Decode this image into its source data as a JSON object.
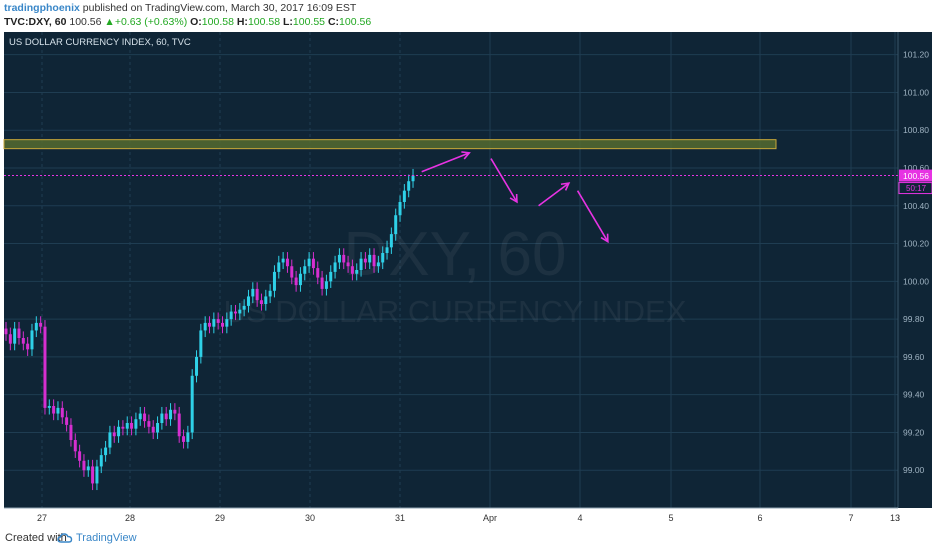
{
  "header": {
    "author": "tradingphoenix",
    "published": "published on TradingView.com, March 30, 2017 16:09 EST",
    "symbol": "TVC:DXY, 60",
    "last": "100.56",
    "change": "+0.63 (+0.63%)",
    "open_label": "O:",
    "open": "100.58",
    "high_label": "H:",
    "high": "100.58",
    "low_label": "L:",
    "low": "100.55",
    "close_label": "C:",
    "close": "100.56"
  },
  "footer": {
    "created_with": "Created with",
    "brand": "TradingView"
  },
  "colors": {
    "background": "#0f2536",
    "grid": "#1f3d52",
    "up": "#2fd1e8",
    "down": "#d62fd0",
    "arrows": "#e733e3",
    "zone_fill": "#556b2f",
    "zone_border": "#c9a93a",
    "price_tag": "#e733e3"
  },
  "chart_data": {
    "type": "candlestick",
    "title": "US DOLLAR CURRENCY INDEX, 60, TVC",
    "watermark_symbol": "DXY, 60",
    "watermark_name": "US DOLLAR CURRENCY INDEX",
    "y_ticks": [
      "99.00",
      "99.20",
      "99.40",
      "99.60",
      "99.80",
      "100.00",
      "100.20",
      "100.40",
      "100.60",
      "100.80",
      "101.00",
      "101.20"
    ],
    "ylim": [
      98.8,
      101.32
    ],
    "x_ticks": [
      "27",
      "28",
      "29",
      "30",
      "31",
      "Apr",
      "4",
      "5",
      "6",
      "7",
      "13"
    ],
    "current_price": "100.56",
    "countdown": "50:17",
    "resistance_zone": [
      100.71,
      100.75
    ],
    "candles_close": [
      99.72,
      99.67,
      99.75,
      99.7,
      99.67,
      99.64,
      99.74,
      99.78,
      99.76,
      99.33,
      99.34,
      99.3,
      99.33,
      99.28,
      99.24,
      99.16,
      99.1,
      99.05,
      99.0,
      99.02,
      98.93,
      99.02,
      99.08,
      99.12,
      99.2,
      99.18,
      99.23,
      99.22,
      99.25,
      99.22,
      99.27,
      99.3,
      99.26,
      99.23,
      99.2,
      99.25,
      99.3,
      99.27,
      99.32,
      99.3,
      99.18,
      99.15,
      99.2,
      99.5,
      99.6,
      99.74,
      99.78,
      99.76,
      99.8,
      99.78,
      99.76,
      99.8,
      99.84,
      99.83,
      99.85,
      99.87,
      99.92,
      99.96,
      99.9,
      99.88,
      99.92,
      99.95,
      100.05,
      100.1,
      100.12,
      100.08,
      100.02,
      99.98,
      100.04,
      100.08,
      100.12,
      100.07,
      100.02,
      99.96,
      100.0,
      100.05,
      100.1,
      100.14,
      100.1,
      100.08,
      100.04,
      100.06,
      100.12,
      100.1,
      100.14,
      100.08,
      100.1,
      100.15,
      100.18,
      100.25,
      100.35,
      100.42,
      100.48,
      100.53,
      100.56
    ],
    "projection_arrows": [
      {
        "from": [
          96,
          100.58
        ],
        "to": [
          107,
          100.68
        ]
      },
      {
        "from": [
          112,
          100.65
        ],
        "to": [
          118,
          100.42
        ]
      },
      {
        "from": [
          123,
          100.4
        ],
        "to": [
          130,
          100.52
        ]
      },
      {
        "from": [
          132,
          100.48
        ],
        "to": [
          139,
          100.21
        ]
      }
    ]
  }
}
